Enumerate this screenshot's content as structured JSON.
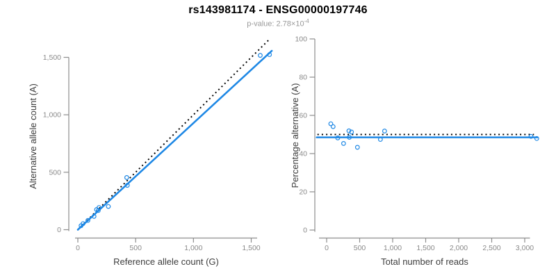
{
  "header": {
    "title": "rs143981174 - ENSG00000197746",
    "pvalue_prefix": "p-value: 2.78×10",
    "pvalue_exponent": "-4"
  },
  "colors": {
    "accent_blue": "#1E88E5",
    "axis_gray": "#8C8C8C",
    "tick_label_gray": "#8A8A8A",
    "axis_title_color": "#3D3D3D",
    "dotted_black": "#000000",
    "subtitle_gray": "#999999"
  },
  "chart_data": [
    {
      "type": "scatter",
      "name": "allele-counts-scatter",
      "title": "rs143981174 - ENSG00000197746",
      "xlabel": "Reference allele count (G)",
      "ylabel": "Alternative allele count (A)",
      "xlim": [
        -78,
        1690
      ],
      "ylim": [
        -70,
        1655
      ],
      "xticks": [
        0,
        500,
        1000,
        1500
      ],
      "yticks": [
        0,
        500,
        1000,
        1500
      ],
      "grid": false,
      "legend": "none",
      "points": [
        [
          28,
          35
        ],
        [
          45,
          53
        ],
        [
          87,
          81
        ],
        [
          140,
          116
        ],
        [
          162,
          175
        ],
        [
          177,
          167
        ],
        [
          183,
          193
        ],
        [
          264,
          202
        ],
        [
          423,
          454
        ],
        [
          428,
          386
        ],
        [
          1578,
          1517
        ],
        [
          1658,
          1524
        ]
      ],
      "lines": [
        {
          "name": "identity-line",
          "style": "dotted",
          "color": "#000000",
          "points": [
            [
              0,
              0
            ],
            [
              1650,
              1650
            ]
          ]
        },
        {
          "name": "fit-line",
          "style": "solid",
          "color": "#1E88E5",
          "points": [
            [
              0,
              0
            ],
            [
              1678,
              1557
            ]
          ]
        }
      ]
    },
    {
      "type": "scatter",
      "name": "percentage-scatter",
      "title": "rs143981174 - ENSG00000197746",
      "xlabel": "Total number of reads",
      "ylabel": "Percentage alternative (A)",
      "xlim": [
        -180,
        3230
      ],
      "ylim": [
        -4,
        100
      ],
      "xticks": [
        0,
        500,
        1000,
        1500,
        2000,
        2500,
        3000
      ],
      "yticks": [
        0,
        20,
        40,
        60,
        80,
        100
      ],
      "grid": false,
      "legend": "none",
      "points": [
        [
          63,
          55.6
        ],
        [
          98,
          54.1
        ],
        [
          168,
          48.2
        ],
        [
          256,
          45.3
        ],
        [
          337,
          51.9
        ],
        [
          344,
          48.5
        ],
        [
          376,
          51.3
        ],
        [
          466,
          43.3
        ],
        [
          814,
          47.4
        ],
        [
          877,
          51.8
        ],
        [
          3095,
          49.0
        ],
        [
          3182,
          47.9
        ]
      ],
      "lines": [
        {
          "name": "expected-50-line",
          "style": "dotted",
          "color": "#000000",
          "points": [
            [
              -140,
              50
            ],
            [
              3140,
              50
            ]
          ]
        },
        {
          "name": "fit-line",
          "style": "solid",
          "color": "#1E88E5",
          "points": [
            [
              -150,
              48.5
            ],
            [
              3190,
              48.5
            ]
          ]
        }
      ]
    }
  ]
}
